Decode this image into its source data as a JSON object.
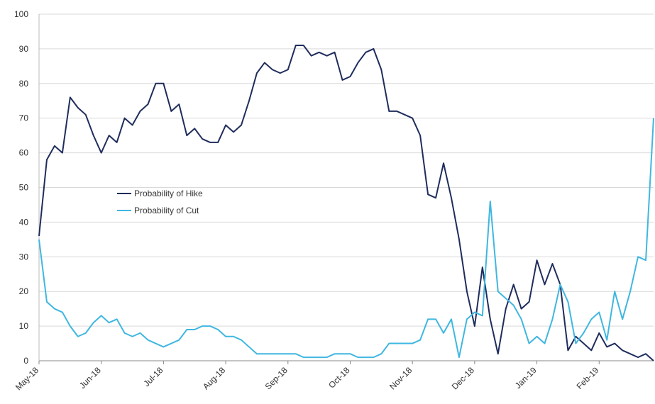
{
  "chart_data": {
    "type": "line",
    "categories": [
      "May-18",
      null,
      null,
      null,
      null,
      null,
      null,
      null,
      "Jun-18",
      null,
      null,
      null,
      null,
      null,
      null,
      null,
      "Jul-18",
      null,
      null,
      null,
      null,
      null,
      null,
      null,
      "Aug-18",
      null,
      null,
      null,
      null,
      null,
      null,
      null,
      "Sep-18",
      null,
      null,
      null,
      null,
      null,
      null,
      null,
      "Oct-18",
      null,
      null,
      null,
      null,
      null,
      null,
      null,
      "Nov-18",
      null,
      null,
      null,
      null,
      null,
      null,
      null,
      "Dec-18",
      null,
      null,
      null,
      null,
      null,
      null,
      null,
      "Jan-19",
      null,
      null,
      null,
      null,
      null,
      null,
      null,
      "Feb-19",
      null,
      null,
      null,
      null,
      null,
      null,
      null
    ],
    "series": [
      {
        "name": "Probability of Hike",
        "color": "#1f2d5c",
        "values": [
          36,
          58,
          62,
          60,
          76,
          73,
          71,
          65,
          60,
          65,
          63,
          70,
          68,
          72,
          74,
          80,
          80,
          72,
          74,
          65,
          67,
          64,
          63,
          63,
          68,
          66,
          68,
          75,
          83,
          86,
          84,
          83,
          84,
          91,
          91,
          88,
          89,
          88,
          89,
          81,
          82,
          86,
          89,
          90,
          84,
          72,
          72,
          71,
          70,
          65,
          48,
          47,
          57,
          47,
          35,
          20,
          10,
          27,
          12,
          2,
          15,
          22,
          15,
          17,
          29,
          22,
          28,
          22,
          3,
          7,
          5,
          3,
          8,
          4,
          5,
          3,
          2,
          1,
          2,
          0
        ]
      },
      {
        "name": "Probability of Cut",
        "color": "#3fb7e0",
        "values": [
          35,
          17,
          15,
          14,
          10,
          7,
          8,
          11,
          13,
          11,
          12,
          8,
          7,
          8,
          6,
          5,
          4,
          5,
          6,
          9,
          9,
          10,
          10,
          9,
          7,
          7,
          6,
          4,
          2,
          2,
          2,
          2,
          2,
          2,
          1,
          1,
          1,
          1,
          2,
          2,
          2,
          1,
          1,
          1,
          2,
          5,
          5,
          5,
          5,
          6,
          12,
          12,
          8,
          12,
          1,
          12,
          14,
          13,
          46,
          20,
          18,
          16,
          12,
          5,
          7,
          5,
          12,
          22,
          17,
          5,
          8,
          12,
          14,
          6,
          20,
          12,
          20,
          30,
          29,
          70
        ]
      }
    ],
    "ylim": [
      0,
      100
    ],
    "yticks": [
      0,
      10,
      20,
      30,
      40,
      50,
      60,
      70,
      80,
      90,
      100
    ],
    "grid": true,
    "legend": "center-left"
  }
}
